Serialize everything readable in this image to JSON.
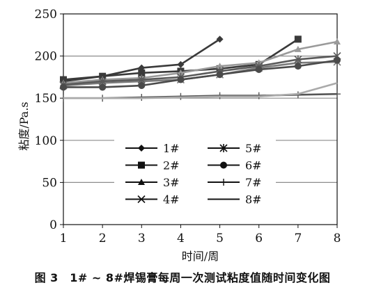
{
  "caption": "图 3　1# ~ 8#焊锡膏每周一次测试粘度值随时间变化图",
  "chart_data": {
    "type": "line",
    "xlabel": "时间/周",
    "ylabel": "粘度/Pa.s",
    "xlim": [
      1,
      8
    ],
    "ylim": [
      0,
      250
    ],
    "x_ticks": [
      1,
      2,
      3,
      4,
      5,
      6,
      7,
      8
    ],
    "y_ticks": [
      0,
      50,
      100,
      150,
      200,
      250
    ],
    "grid": "horizontal",
    "legend_placement": "lower-center",
    "series": [
      {
        "name": "1#",
        "marker": "diamond",
        "color": "#3a3a3a",
        "x": [
          1,
          2,
          3,
          4,
          5
        ],
        "values": [
          170,
          176,
          186,
          190,
          220
        ]
      },
      {
        "name": "2#",
        "marker": "square",
        "color": "#3a3a3a",
        "x": [
          1,
          2,
          3,
          4,
          5,
          6,
          7
        ],
        "values": [
          172,
          176,
          180,
          182,
          185,
          190,
          220
        ]
      },
      {
        "name": "3#",
        "marker": "triangle",
        "color": "#9a9a9a",
        "x": [
          1,
          2,
          3,
          4,
          5,
          6,
          7,
          8
        ],
        "values": [
          168,
          172,
          174,
          180,
          188,
          192,
          208,
          217
        ]
      },
      {
        "name": "4#",
        "marker": "x",
        "color": "#7a7a7a",
        "x": [
          1,
          2,
          3,
          4,
          5,
          6,
          7,
          8
        ],
        "values": [
          165,
          168,
          170,
          172,
          178,
          186,
          192,
          193
        ]
      },
      {
        "name": "5#",
        "marker": "star",
        "color": "#5a5a5a",
        "x": [
          1,
          2,
          3,
          4,
          5,
          6,
          7,
          8
        ],
        "values": [
          166,
          170,
          172,
          175,
          182,
          188,
          196,
          200
        ]
      },
      {
        "name": "6#",
        "marker": "circle",
        "color": "#4a4a4a",
        "x": [
          1,
          2,
          3,
          4,
          5,
          6,
          7,
          8
        ],
        "values": [
          163,
          163,
          165,
          172,
          178,
          184,
          188,
          195
        ]
      },
      {
        "name": "7#",
        "marker": "plus",
        "color": "#555555",
        "x": [
          1,
          2,
          3,
          4,
          5,
          6,
          7,
          8
        ],
        "values": [
          150,
          150,
          151,
          152,
          153,
          153,
          154,
          155
        ]
      },
      {
        "name": "8#",
        "marker": "none",
        "color": "#aaaaaa",
        "x": [
          1,
          2,
          3,
          4,
          5,
          6,
          7,
          8
        ],
        "values": [
          150,
          150,
          150,
          151,
          152,
          152,
          155,
          168
        ]
      }
    ]
  }
}
